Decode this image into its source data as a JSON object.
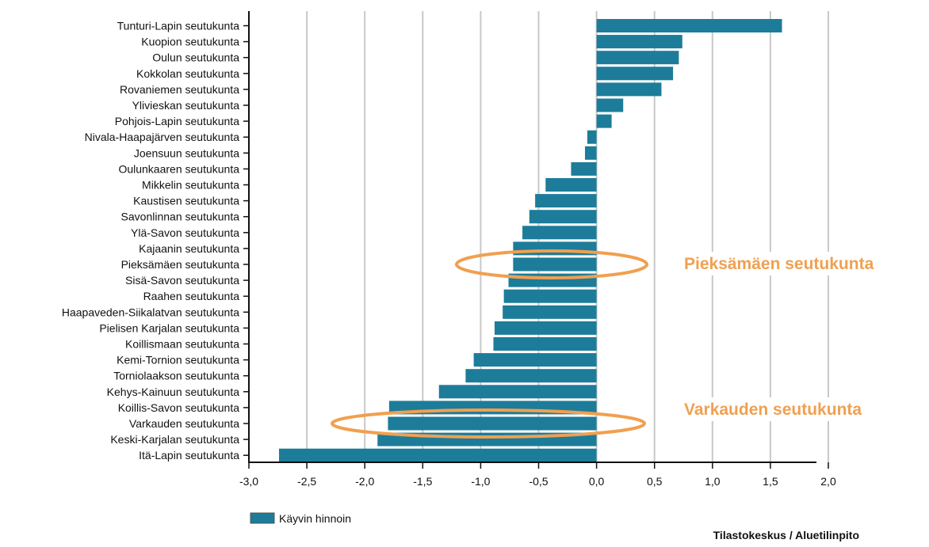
{
  "chart_data": {
    "type": "bar",
    "orientation": "horizontal",
    "categories": [
      "Tunturi-Lapin seutukunta",
      "Kuopion seutukunta",
      "Oulun seutukunta",
      "Kokkolan seutukunta",
      "Rovaniemen seutukunta",
      "Ylivieskan seutukunta",
      "Pohjois-Lapin seutukunta",
      "Nivala-Haapajärven seutukunta",
      "Joensuun seutukunta",
      "Oulunkaaren seutukunta",
      "Mikkelin seutukunta",
      "Kaustisen seutukunta",
      "Savonlinnan seutukunta",
      "Ylä-Savon seutukunta",
      "Kajaanin seutukunta",
      "Pieksämäen seutukunta",
      "Sisä-Savon seutukunta",
      "Raahen seutukunta",
      "Haapaveden-Siikalatvan seutukunta",
      "Pielisen Karjalan seutukunta",
      "Koillismaan seutukunta",
      "Kemi-Tornion seutukunta",
      "Torniolaakson seutukunta",
      "Kehys-Kainuun seutukunta",
      "Koillis-Savon seutukunta",
      "Varkauden seutukunta",
      "Keski-Karjalan seutukunta",
      "Itä-Lapin seutukunta"
    ],
    "series": [
      {
        "name": "Käyvin hinnoin",
        "color": "#1d7c99",
        "values": [
          1.6,
          0.74,
          0.71,
          0.66,
          0.56,
          0.23,
          0.13,
          -0.08,
          -0.1,
          -0.22,
          -0.44,
          -0.53,
          -0.58,
          -0.64,
          -0.72,
          -0.72,
          -0.76,
          -0.8,
          -0.81,
          -0.88,
          -0.89,
          -1.06,
          -1.13,
          -1.36,
          -1.79,
          -1.8,
          -1.89,
          -2.74
        ]
      }
    ],
    "xlim": [
      -3.0,
      2.0
    ],
    "x_ticks": [
      "-3,0",
      "-2,5",
      "-2,0",
      "-1,5",
      "-1,0",
      "-0,5",
      "0,0",
      "0,5",
      "1,0",
      "1,5",
      "2,0"
    ],
    "x_tick_values": [
      -3.0,
      -2.5,
      -2.0,
      -1.5,
      -1.0,
      -0.5,
      0.0,
      0.5,
      1.0,
      1.5,
      2.0
    ],
    "grid": "vertical",
    "legend_position": "bottom-left",
    "title": "",
    "xlabel": "",
    "ylabel": "",
    "annotations": [
      {
        "text": "Pieksämäen seutukunta",
        "category": "Pieksämäen seutukunta",
        "color": "#f0a050"
      },
      {
        "text": "Varkauden seutukunta",
        "category": "Varkauden seutukunta",
        "color": "#f0a050"
      }
    ],
    "source": "Tilastokeskus / Aluetilinpito"
  }
}
